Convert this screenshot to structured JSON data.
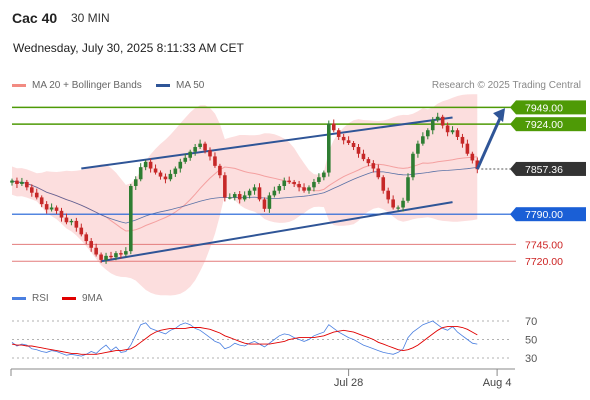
{
  "header": {
    "instrument": "Cac 40",
    "timeframe": "30 MIN",
    "datetime": "Wednesday, July 30, 2025 8:11:33 AM CET"
  },
  "legend": {
    "ma20_label": "MA 20 + Bollinger Bands",
    "ma50_label": "MA 50",
    "credit": "Research © 2025 Trading Central"
  },
  "rsi_legend": {
    "rsi_label": "RSI",
    "ma_label": "9MA"
  },
  "colors": {
    "ma20": "#f4a0a0",
    "ma50": "#2f5597",
    "bands_fill": "#fbd3d3",
    "resistance": "#4e9a06",
    "support_level": "#1a5fd6",
    "minor_support": "#e37b7b",
    "rsi": "#4a7fe0",
    "rsi_ma": "#e00000",
    "candle_up": "#2e7d32",
    "candle_down": "#c62828",
    "price_tag": "#333333"
  },
  "chart_data": [
    {
      "type": "candlestick",
      "title": "Cac 40 30 MIN",
      "ylim": [
        7698,
        7960
      ],
      "x_tick_labels": [
        "Jul 28",
        "Aug 4"
      ],
      "price_levels": [
        {
          "value": 7949.0,
          "label": "7949.00",
          "kind": "resistance"
        },
        {
          "value": 7924.0,
          "label": "7924.00",
          "kind": "resistance"
        },
        {
          "value": 7857.36,
          "label": "7857.36",
          "kind": "last-price"
        },
        {
          "value": 7790.0,
          "label": "7790.00",
          "kind": "pivot"
        },
        {
          "value": 7745.0,
          "label": "7745.00",
          "kind": "support"
        },
        {
          "value": 7720.0,
          "label": "7720.00",
          "kind": "support"
        }
      ],
      "close": [
        7840,
        7835,
        7838,
        7830,
        7822,
        7815,
        7805,
        7797,
        7800,
        7795,
        7785,
        7778,
        7780,
        7770,
        7760,
        7750,
        7740,
        7730,
        7722,
        7728,
        7726,
        7732,
        7730,
        7735,
        7832,
        7842,
        7860,
        7868,
        7858,
        7852,
        7846,
        7842,
        7850,
        7858,
        7868,
        7874,
        7883,
        7890,
        7895,
        7885,
        7876,
        7862,
        7848,
        7815,
        7815,
        7820,
        7812,
        7818,
        7825,
        7830,
        7812,
        7798,
        7818,
        7825,
        7832,
        7840,
        7838,
        7835,
        7830,
        7825,
        7830,
        7838,
        7845,
        7852,
        7925,
        7915,
        7905,
        7900,
        7896,
        7890,
        7880,
        7872,
        7866,
        7858,
        7845,
        7825,
        7812,
        7800,
        7800,
        7810,
        7845,
        7880,
        7895,
        7906,
        7915,
        7930,
        7935,
        7922,
        7912,
        7915,
        7905,
        7895,
        7880,
        7870,
        7857
      ],
      "trend_channel": {
        "upper": [
          {
            "index": 14,
            "value": 7858
          },
          {
            "index": 89,
            "value": 7934
          }
        ],
        "lower": [
          {
            "index": 18,
            "value": 7720
          },
          {
            "index": 89,
            "value": 7808
          }
        ]
      },
      "forecast_arrow": {
        "from": {
          "index": 94,
          "value": 7857
        },
        "to": {
          "index": 99,
          "value": 7942
        }
      }
    },
    {
      "type": "line",
      "title": "RSI",
      "ylim": [
        30,
        70
      ],
      "y_ticks": [
        70,
        50,
        30
      ],
      "series": [
        {
          "name": "RSI",
          "values": [
            47,
            43,
            45,
            44,
            40,
            39,
            37,
            36,
            38,
            37,
            35,
            33,
            34,
            33,
            32,
            34,
            37,
            35,
            40,
            44,
            38,
            42,
            36,
            37,
            44,
            55,
            66,
            68,
            62,
            60,
            58,
            56,
            60,
            62,
            66,
            68,
            66,
            62,
            60,
            56,
            52,
            48,
            46,
            40,
            42,
            46,
            44,
            43,
            46,
            48,
            45,
            42,
            46,
            50,
            54,
            56,
            55,
            52,
            50,
            48,
            50,
            54,
            56,
            58,
            66,
            62,
            58,
            55,
            52,
            50,
            47,
            44,
            42,
            40,
            38,
            36,
            35,
            34,
            36,
            40,
            52,
            58,
            62,
            66,
            68,
            70,
            66,
            62,
            60,
            64,
            58,
            54,
            50,
            46,
            45
          ]
        },
        {
          "name": "9MA",
          "values": [
            45,
            44,
            44,
            43,
            43,
            42,
            41,
            40,
            39,
            38,
            37,
            36,
            35,
            35,
            34,
            34,
            34,
            34,
            35,
            36,
            37,
            38,
            38,
            39,
            40,
            43,
            47,
            51,
            55,
            58,
            60,
            61,
            62,
            62,
            62,
            62,
            63,
            63,
            63,
            62,
            61,
            59,
            57,
            54,
            52,
            50,
            48,
            46,
            45,
            45,
            45,
            45,
            45,
            46,
            47,
            48,
            50,
            51,
            52,
            52,
            52,
            52,
            53,
            54,
            56,
            58,
            59,
            60,
            59,
            58,
            56,
            54,
            52,
            50,
            47,
            45,
            43,
            41,
            39,
            38,
            39,
            41,
            44,
            48,
            52,
            56,
            60,
            63,
            64,
            64,
            64,
            63,
            61,
            58,
            55
          ]
        }
      ]
    }
  ]
}
